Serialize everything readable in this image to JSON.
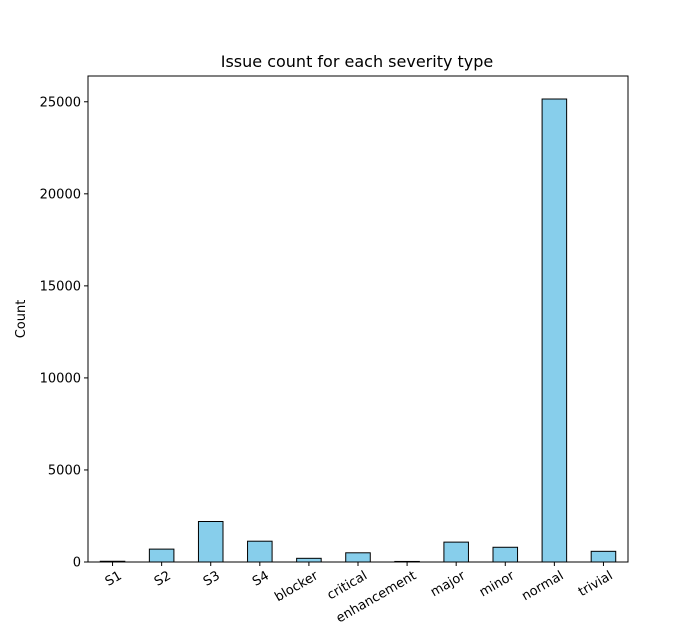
{
  "chart_data": {
    "type": "bar",
    "title": "Issue count for each severity type",
    "xlabel": "",
    "ylabel": "Count",
    "categories": [
      "S1",
      "S2",
      "S3",
      "S4",
      "blocker",
      "critical",
      "enhancement",
      "major",
      "minor",
      "normal",
      "trivial"
    ],
    "values": [
      40,
      700,
      2200,
      1130,
      200,
      500,
      30,
      1080,
      800,
      25150,
      580
    ],
    "ylim": [
      0,
      26400
    ],
    "yticks": [
      0,
      5000,
      10000,
      15000,
      20000,
      25000
    ],
    "grid": false,
    "bar_color": "#87CEEB",
    "edge_color": "#000000"
  }
}
